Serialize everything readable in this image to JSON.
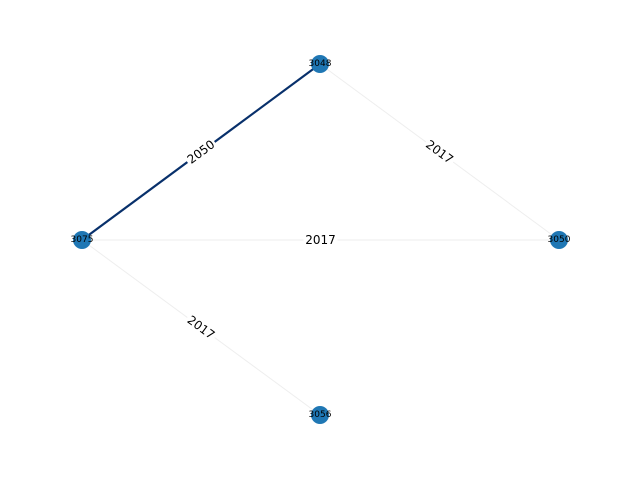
{
  "graph": {
    "nodes": [
      {
        "id": "3048",
        "label": "3048"
      },
      {
        "id": "3075",
        "label": "3075"
      },
      {
        "id": "3050",
        "label": "3050"
      },
      {
        "id": "3056",
        "label": "3056"
      }
    ],
    "edges": [
      {
        "source": "3075",
        "target": "3048",
        "label": "2050",
        "emphasis": "strong"
      },
      {
        "source": "3048",
        "target": "3050",
        "label": "2017",
        "emphasis": "faint"
      },
      {
        "source": "3075",
        "target": "3050",
        "label": "2017",
        "emphasis": "faint"
      },
      {
        "source": "3075",
        "target": "3056",
        "label": "2017",
        "emphasis": "faint"
      }
    ]
  },
  "colors": {
    "node": "#1f77b4",
    "edge_strong": "#08306b",
    "edge_faint": "#eeeeee",
    "label_bg": "#ffffff"
  }
}
